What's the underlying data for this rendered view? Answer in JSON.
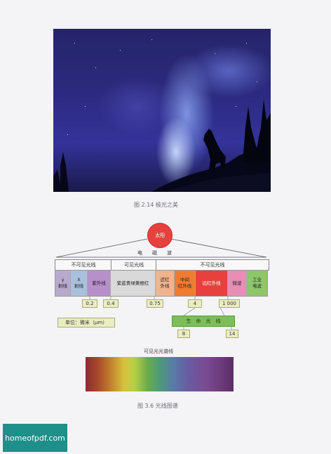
{
  "photo": {
    "alt_icon": "aurora-wolf-photo"
  },
  "fig214_caption": "图 2.14  极光之美",
  "diagram": {
    "sun_label": "太阳",
    "em_wave_label": "电　　磁　　波",
    "groups": {
      "invisible_left": "不可见光线",
      "visible": "可见光线",
      "invisible_right": "不可见光线"
    },
    "cells": {
      "gamma": "γ\n射线",
      "xray": "X\n射线",
      "uv": "紫外线",
      "visible_colors": "紫蓝青绿黄橙红",
      "near_ir": "近红\n外线",
      "mid_ir": "中间\n红外线",
      "far_ir": "远红外线",
      "microwave": "微波",
      "industrial": "工业\n电波"
    },
    "values": {
      "v02": "0.2",
      "v04": "0.4",
      "v075": "0.75",
      "v4": "4",
      "v1000": "1 000"
    },
    "unit": "单位：微米（μm）",
    "life_ray": "生　命　光　线",
    "life_values": {
      "v8": "8",
      "v14": "14"
    },
    "colors": {
      "gamma": "#b8a9ce",
      "xray": "#a9c0dc",
      "uv": "#b78fc9",
      "visible_colors": "#d9d9d9",
      "near_ir": "#f0b48c",
      "mid_ir": "#f07c32",
      "far_ir": "#e8403d",
      "microwave": "#e88db5",
      "industrial": "#8ec66a",
      "life_ray": "#7cbf58"
    }
  },
  "spectrum_title": "可见光光谱线",
  "fig36_caption": "图 3.6   光线图谱",
  "watermark": "homeofpdf.com"
}
